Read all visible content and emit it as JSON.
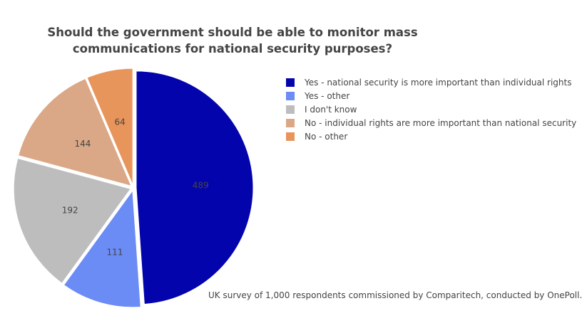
{
  "chart_data": {
    "type": "pie",
    "title_line1": "Should the government should be able to monitor mass",
    "title_line2": "communications for national security purposes?",
    "slices": [
      {
        "label": "Yes - national security is more important than individual rights",
        "value": 489,
        "color": "#0404ad"
      },
      {
        "label": "Yes - other",
        "value": 111,
        "color": "#6b8bf5"
      },
      {
        "label": "I don't know",
        "value": 192,
        "color": "#bdbdbd"
      },
      {
        "label": "No - individual rights are more important than national security",
        "value": 144,
        "color": "#daa886"
      },
      {
        "label": "No - other",
        "value": 64,
        "color": "#e8955c"
      }
    ],
    "legend_position": "right",
    "annotation": "UK survey of 1,000 respondents commissioned by Comparitech, conducted by OnePoll."
  }
}
